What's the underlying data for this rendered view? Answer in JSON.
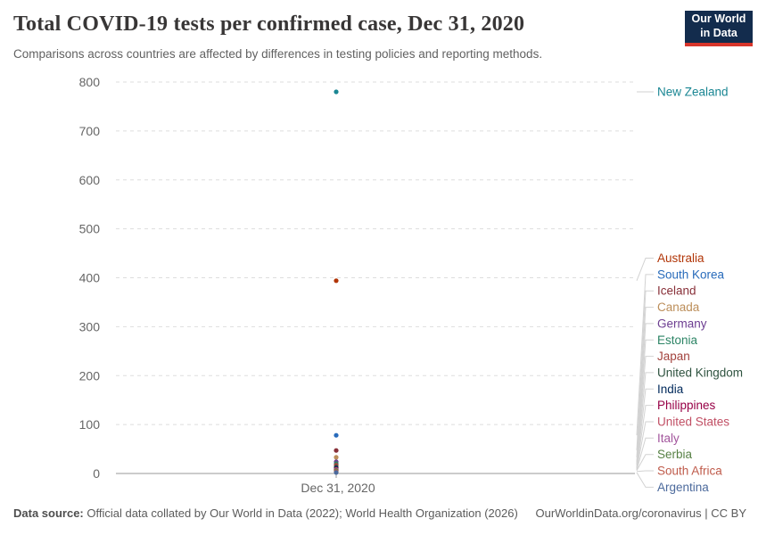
{
  "header": {
    "title": "Total COVID-19 tests per confirmed case, Dec 31, 2020",
    "subtitle": "Comparisons across countries are affected by differences in testing policies and reporting methods."
  },
  "logo": {
    "line1": "Our World",
    "line2": "in Data"
  },
  "footer": {
    "source_label": "Data source:",
    "source_text": " Official data collated by Our World in Data (2022); World Health Organization (2026)",
    "link_text": "OurWorldinData.org/coronavirus | CC BY"
  },
  "chart_data": {
    "type": "scatter",
    "title": "Total COVID-19 tests per confirmed case, Dec 31, 2020",
    "x_tick_label": "Dec 31, 2020",
    "xlabel": "",
    "ylabel": "",
    "ylim": [
      0,
      800
    ],
    "y_ticks": [
      0,
      100,
      200,
      300,
      400,
      500,
      600,
      700,
      800
    ],
    "grid": true,
    "legend_position": "right",
    "series": [
      {
        "name": "New Zealand",
        "value": 780,
        "color": "#1a8693"
      },
      {
        "name": "Australia",
        "value": 394,
        "color": "#b13507"
      },
      {
        "name": "South Korea",
        "value": 78,
        "color": "#286bbb"
      },
      {
        "name": "Iceland",
        "value": 47,
        "color": "#883039"
      },
      {
        "name": "Canada",
        "value": 33,
        "color": "#bc8e5a"
      },
      {
        "name": "Germany",
        "value": 24,
        "color": "#6d3e91"
      },
      {
        "name": "Estonia",
        "value": 20,
        "color": "#2c8465"
      },
      {
        "name": "Japan",
        "value": 17,
        "color": "#a2423d"
      },
      {
        "name": "United Kingdom",
        "value": 13,
        "color": "#2f5340"
      },
      {
        "name": "India",
        "value": 11,
        "color": "#00295b"
      },
      {
        "name": "Philippines",
        "value": 9,
        "color": "#970046"
      },
      {
        "name": "United States",
        "value": 8,
        "color": "#c15065"
      },
      {
        "name": "Italy",
        "value": 7,
        "color": "#a2559c"
      },
      {
        "name": "Serbia",
        "value": 6,
        "color": "#578145"
      },
      {
        "name": "South Africa",
        "value": 4,
        "color": "#bf5b4b"
      },
      {
        "name": "Argentina",
        "value": 2,
        "color": "#4c6a9c"
      }
    ]
  },
  "style": {
    "grid_color": "#dddddd",
    "axis_color": "#999999",
    "tick_label_color": "#666666",
    "leader_line_color": "#d2d2d2",
    "logo_bg": "#132c4d",
    "logo_accent": "#d8352b"
  }
}
